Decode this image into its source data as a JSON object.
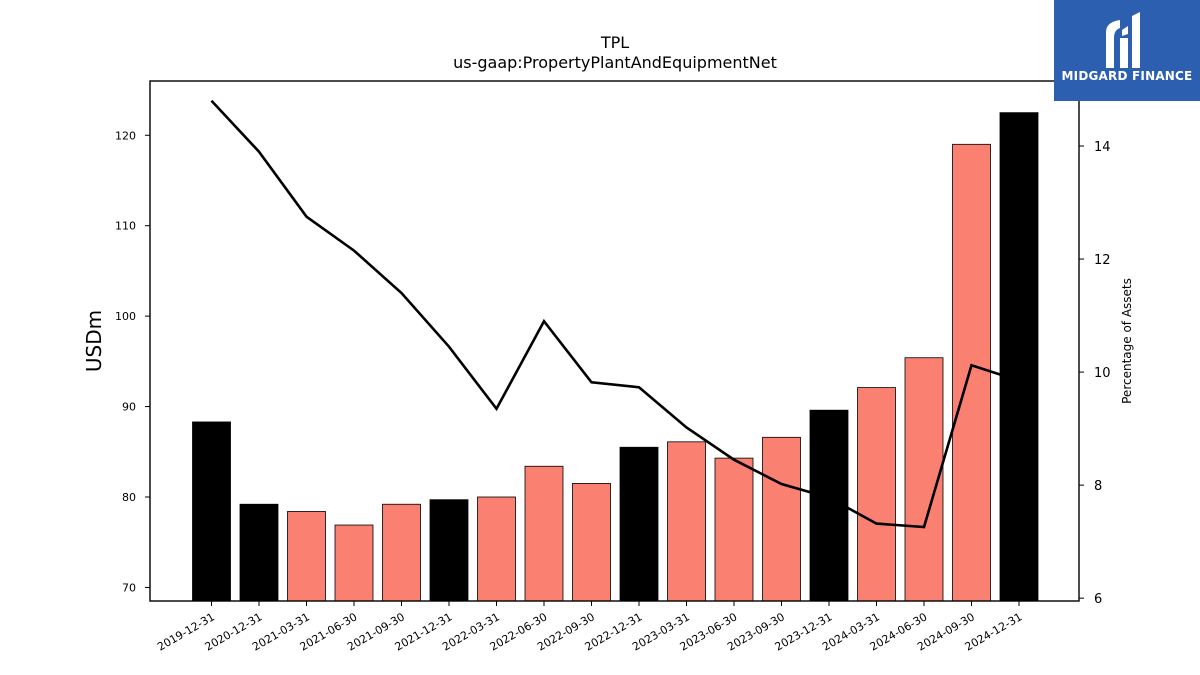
{
  "logo": {
    "text": "MIDGARD FINANCE",
    "background": "#2d5fb0",
    "icon": "midgard-m-logo-icon"
  },
  "chart_data": {
    "type": "bar",
    "title": "TPL",
    "subtitle": "us-gaap:PropertyPlantAndEquipmentNet",
    "xlabel": "",
    "ylabel": "USDm",
    "y2label": "Percentage of Assets",
    "ylim": [
      68.5,
      126
    ],
    "y2lim": [
      5.95,
      15.15
    ],
    "yticks": [
      70,
      80,
      90,
      100,
      110,
      120
    ],
    "y2ticks": [
      6,
      8,
      10,
      12,
      14
    ],
    "grid": false,
    "colors": {
      "annual": "#000000",
      "quarterly": "#fa8072",
      "line": "#000000"
    },
    "categories": [
      "2019-12-31",
      "2020-12-31",
      "2021-03-31",
      "2021-06-30",
      "2021-09-30",
      "2021-12-31",
      "2022-03-31",
      "2022-06-30",
      "2022-09-30",
      "2022-12-31",
      "2023-03-31",
      "2023-06-30",
      "2023-09-30",
      "2023-12-31",
      "2024-03-31",
      "2024-06-30",
      "2024-09-30",
      "2024-12-31"
    ],
    "series": [
      {
        "type": "bar",
        "values": [
          88.3,
          79.2,
          78.4,
          76.9,
          79.2,
          79.7,
          80.0,
          83.4,
          81.5,
          85.5,
          86.1,
          84.3,
          86.6,
          89.6,
          92.1,
          95.4,
          119.0,
          122.5
        ],
        "period": [
          "annual",
          "annual",
          "quarterly",
          "quarterly",
          "quarterly",
          "annual",
          "quarterly",
          "quarterly",
          "quarterly",
          "annual",
          "quarterly",
          "quarterly",
          "quarterly",
          "annual",
          "quarterly",
          "quarterly",
          "quarterly",
          "annual"
        ]
      },
      {
        "type": "line",
        "axis": "right",
        "values": [
          14.8,
          13.9,
          12.75,
          12.15,
          11.4,
          10.45,
          9.35,
          10.9,
          9.82,
          9.73,
          9.02,
          8.45,
          8.02,
          7.78,
          7.32,
          7.26,
          10.12,
          9.85
        ]
      }
    ]
  }
}
